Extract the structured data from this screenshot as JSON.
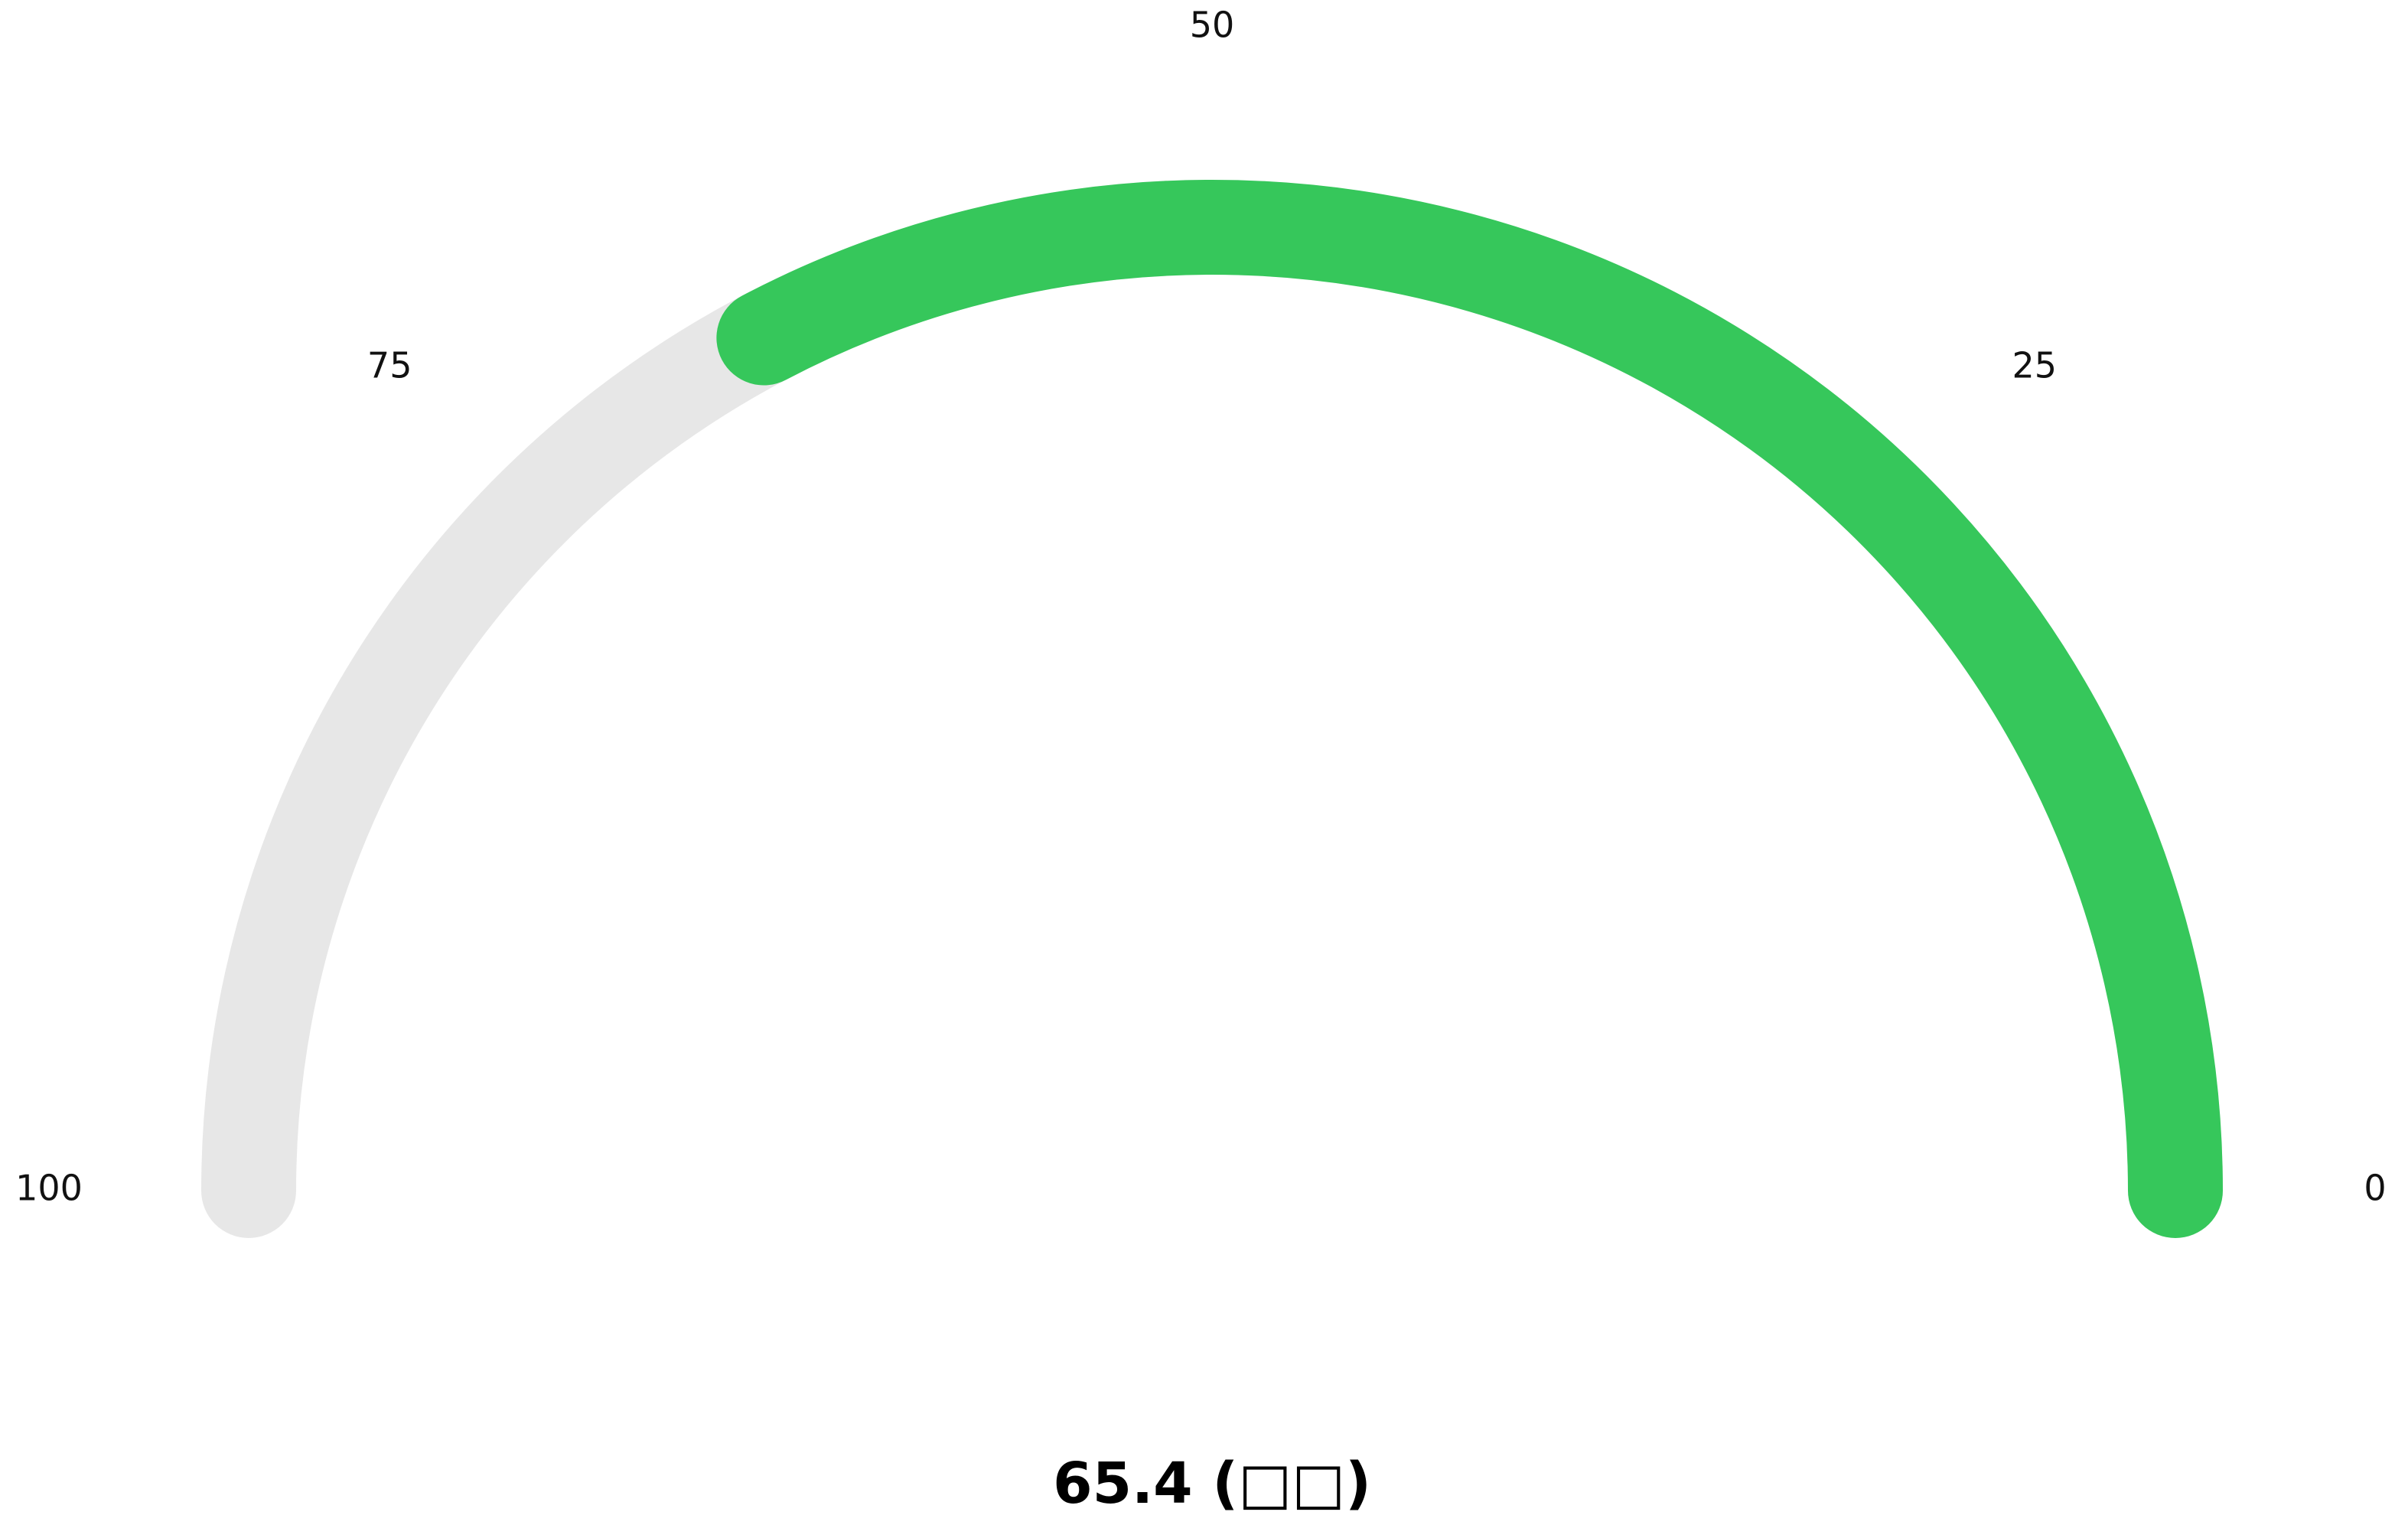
{
  "chart_data": {
    "type": "gauge",
    "min": 0,
    "max": 100,
    "value": 65.4,
    "direction": "right-to-left",
    "ticks": [
      {
        "value": 0,
        "label": "0"
      },
      {
        "value": 25,
        "label": "25"
      },
      {
        "value": 50,
        "label": "50"
      },
      {
        "value": 75,
        "label": "75"
      },
      {
        "value": 100,
        "label": "100"
      }
    ],
    "value_label": "65.4 (□□)",
    "colors": {
      "track": "#e7e7e7",
      "fill": "#36c75b",
      "text": "#111111"
    }
  }
}
